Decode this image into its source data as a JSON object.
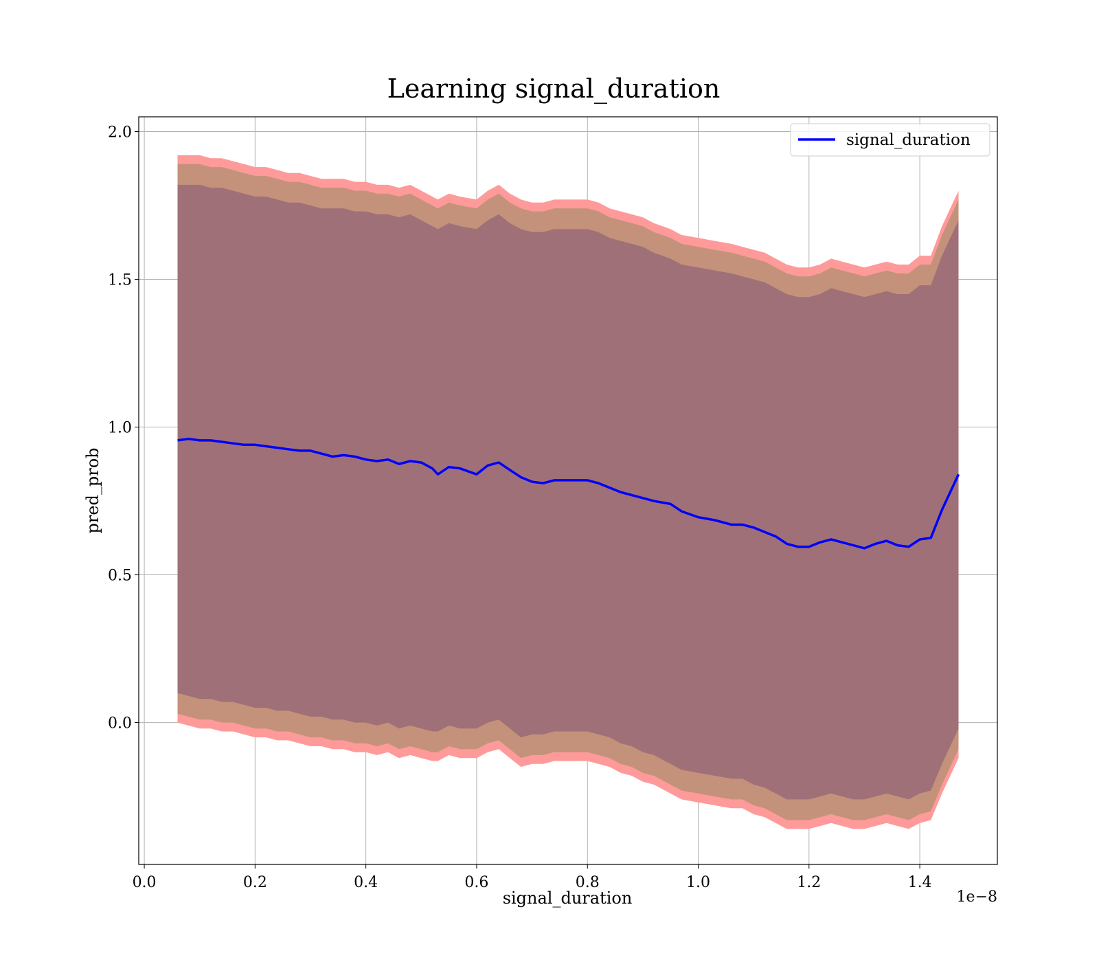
{
  "chart_data": {
    "type": "line",
    "title": "Learning signal_duration",
    "xlabel": "signal_duration",
    "ylabel": "pred_prob",
    "x_offset_text": "1e−8",
    "x_ticks": [
      "0.0",
      "0.2",
      "0.4",
      "0.6",
      "0.8",
      "1.0",
      "1.2",
      "1.4"
    ],
    "y_ticks": [
      "0.0",
      "0.5",
      "1.0",
      "1.5",
      "2.0"
    ],
    "xlim": [
      -0.01,
      1.54
    ],
    "ylim": [
      -0.48,
      2.05
    ],
    "grid": true,
    "legend_position": "top-right",
    "colors": {
      "line": "#0000ff",
      "band_outer": "#ff9a9a",
      "band_mid": "#c4927a",
      "band_inner": "#a07078",
      "grid": "#b0b0b0"
    },
    "series": [
      {
        "name": "signal_duration",
        "x": [
          0.06,
          0.08,
          0.1,
          0.12,
          0.14,
          0.16,
          0.18,
          0.2,
          0.22,
          0.24,
          0.26,
          0.28,
          0.3,
          0.32,
          0.34,
          0.36,
          0.38,
          0.4,
          0.42,
          0.44,
          0.46,
          0.48,
          0.5,
          0.52,
          0.53,
          0.55,
          0.57,
          0.6,
          0.62,
          0.64,
          0.66,
          0.68,
          0.7,
          0.72,
          0.74,
          0.76,
          0.78,
          0.8,
          0.82,
          0.84,
          0.86,
          0.88,
          0.9,
          0.92,
          0.95,
          0.97,
          1.0,
          1.03,
          1.06,
          1.08,
          1.1,
          1.12,
          1.14,
          1.16,
          1.18,
          1.2,
          1.22,
          1.24,
          1.26,
          1.28,
          1.3,
          1.32,
          1.34,
          1.36,
          1.38,
          1.4,
          1.42,
          1.44,
          1.47
        ],
        "y": [
          0.955,
          0.96,
          0.955,
          0.955,
          0.95,
          0.945,
          0.94,
          0.94,
          0.935,
          0.93,
          0.925,
          0.92,
          0.92,
          0.91,
          0.9,
          0.905,
          0.9,
          0.89,
          0.885,
          0.89,
          0.875,
          0.885,
          0.88,
          0.86,
          0.84,
          0.865,
          0.86,
          0.84,
          0.87,
          0.88,
          0.855,
          0.83,
          0.815,
          0.81,
          0.82,
          0.82,
          0.82,
          0.82,
          0.81,
          0.795,
          0.78,
          0.77,
          0.76,
          0.75,
          0.74,
          0.715,
          0.695,
          0.685,
          0.67,
          0.67,
          0.66,
          0.645,
          0.63,
          0.605,
          0.595,
          0.595,
          0.61,
          0.62,
          0.61,
          0.6,
          0.59,
          0.605,
          0.615,
          0.6,
          0.595,
          0.62,
          0.625,
          0.72,
          0.84
        ]
      }
    ],
    "bands": [
      {
        "lower": [
          0.0,
          -0.01,
          -0.02,
          -0.02,
          -0.03,
          -0.03,
          -0.04,
          -0.05,
          -0.05,
          -0.06,
          -0.06,
          -0.07,
          -0.08,
          -0.08,
          -0.09,
          -0.09,
          -0.1,
          -0.1,
          -0.11,
          -0.1,
          -0.12,
          -0.11,
          -0.12,
          -0.13,
          -0.13,
          -0.11,
          -0.12,
          -0.12,
          -0.1,
          -0.09,
          -0.12,
          -0.15,
          -0.14,
          -0.14,
          -0.13,
          -0.13,
          -0.13,
          -0.13,
          -0.14,
          -0.15,
          -0.17,
          -0.18,
          -0.2,
          -0.21,
          -0.24,
          -0.26,
          -0.27,
          -0.28,
          -0.29,
          -0.29,
          -0.31,
          -0.32,
          -0.34,
          -0.36,
          -0.36,
          -0.36,
          -0.35,
          -0.34,
          -0.35,
          -0.36,
          -0.36,
          -0.35,
          -0.34,
          -0.35,
          -0.36,
          -0.34,
          -0.33,
          -0.24,
          -0.12
        ],
        "upper": [
          1.92,
          1.92,
          1.92,
          1.91,
          1.91,
          1.9,
          1.89,
          1.88,
          1.88,
          1.87,
          1.86,
          1.86,
          1.85,
          1.84,
          1.84,
          1.84,
          1.83,
          1.83,
          1.82,
          1.82,
          1.81,
          1.82,
          1.8,
          1.78,
          1.77,
          1.79,
          1.78,
          1.77,
          1.8,
          1.82,
          1.79,
          1.77,
          1.76,
          1.76,
          1.77,
          1.77,
          1.77,
          1.77,
          1.76,
          1.74,
          1.73,
          1.72,
          1.71,
          1.69,
          1.67,
          1.65,
          1.64,
          1.63,
          1.62,
          1.61,
          1.6,
          1.59,
          1.57,
          1.55,
          1.54,
          1.54,
          1.55,
          1.57,
          1.56,
          1.55,
          1.54,
          1.55,
          1.56,
          1.55,
          1.55,
          1.58,
          1.58,
          1.68,
          1.8
        ]
      },
      {
        "lower": [
          0.03,
          0.02,
          0.01,
          0.01,
          0.0,
          0.0,
          -0.01,
          -0.02,
          -0.02,
          -0.03,
          -0.03,
          -0.04,
          -0.05,
          -0.05,
          -0.06,
          -0.06,
          -0.07,
          -0.07,
          -0.08,
          -0.07,
          -0.09,
          -0.08,
          -0.09,
          -0.1,
          -0.1,
          -0.08,
          -0.09,
          -0.09,
          -0.07,
          -0.06,
          -0.09,
          -0.12,
          -0.11,
          -0.11,
          -0.1,
          -0.1,
          -0.1,
          -0.1,
          -0.11,
          -0.12,
          -0.14,
          -0.15,
          -0.17,
          -0.18,
          -0.21,
          -0.23,
          -0.24,
          -0.25,
          -0.26,
          -0.26,
          -0.28,
          -0.29,
          -0.31,
          -0.33,
          -0.33,
          -0.33,
          -0.32,
          -0.31,
          -0.32,
          -0.33,
          -0.33,
          -0.32,
          -0.31,
          -0.32,
          -0.33,
          -0.31,
          -0.3,
          -0.21,
          -0.09
        ],
        "upper": [
          1.89,
          1.89,
          1.89,
          1.88,
          1.88,
          1.87,
          1.86,
          1.85,
          1.85,
          1.84,
          1.83,
          1.83,
          1.82,
          1.81,
          1.81,
          1.81,
          1.8,
          1.8,
          1.79,
          1.79,
          1.78,
          1.79,
          1.77,
          1.75,
          1.74,
          1.76,
          1.75,
          1.74,
          1.77,
          1.79,
          1.76,
          1.74,
          1.73,
          1.73,
          1.74,
          1.74,
          1.74,
          1.74,
          1.73,
          1.71,
          1.7,
          1.69,
          1.68,
          1.66,
          1.64,
          1.62,
          1.61,
          1.6,
          1.59,
          1.58,
          1.57,
          1.56,
          1.54,
          1.52,
          1.51,
          1.51,
          1.52,
          1.54,
          1.53,
          1.52,
          1.51,
          1.52,
          1.53,
          1.52,
          1.52,
          1.55,
          1.55,
          1.65,
          1.77
        ]
      },
      {
        "lower": [
          0.1,
          0.09,
          0.08,
          0.08,
          0.07,
          0.07,
          0.06,
          0.05,
          0.05,
          0.04,
          0.04,
          0.03,
          0.02,
          0.02,
          0.01,
          0.01,
          0.0,
          0.0,
          -0.01,
          0.0,
          -0.02,
          -0.01,
          -0.02,
          -0.03,
          -0.03,
          -0.01,
          -0.02,
          -0.02,
          0.0,
          0.01,
          -0.02,
          -0.05,
          -0.04,
          -0.04,
          -0.03,
          -0.03,
          -0.03,
          -0.03,
          -0.04,
          -0.05,
          -0.07,
          -0.08,
          -0.1,
          -0.11,
          -0.14,
          -0.16,
          -0.17,
          -0.18,
          -0.19,
          -0.19,
          -0.21,
          -0.22,
          -0.24,
          -0.26,
          -0.26,
          -0.26,
          -0.25,
          -0.24,
          -0.25,
          -0.26,
          -0.26,
          -0.25,
          -0.24,
          -0.25,
          -0.26,
          -0.24,
          -0.23,
          -0.14,
          -0.02
        ],
        "upper": [
          1.82,
          1.82,
          1.82,
          1.81,
          1.81,
          1.8,
          1.79,
          1.78,
          1.78,
          1.77,
          1.76,
          1.76,
          1.75,
          1.74,
          1.74,
          1.74,
          1.73,
          1.73,
          1.72,
          1.72,
          1.71,
          1.72,
          1.7,
          1.68,
          1.67,
          1.69,
          1.68,
          1.67,
          1.7,
          1.72,
          1.69,
          1.67,
          1.66,
          1.66,
          1.67,
          1.67,
          1.67,
          1.67,
          1.66,
          1.64,
          1.63,
          1.62,
          1.61,
          1.59,
          1.57,
          1.55,
          1.54,
          1.53,
          1.52,
          1.51,
          1.5,
          1.49,
          1.47,
          1.45,
          1.44,
          1.44,
          1.45,
          1.47,
          1.46,
          1.45,
          1.44,
          1.45,
          1.46,
          1.45,
          1.45,
          1.48,
          1.48,
          1.58,
          1.7
        ]
      }
    ]
  }
}
